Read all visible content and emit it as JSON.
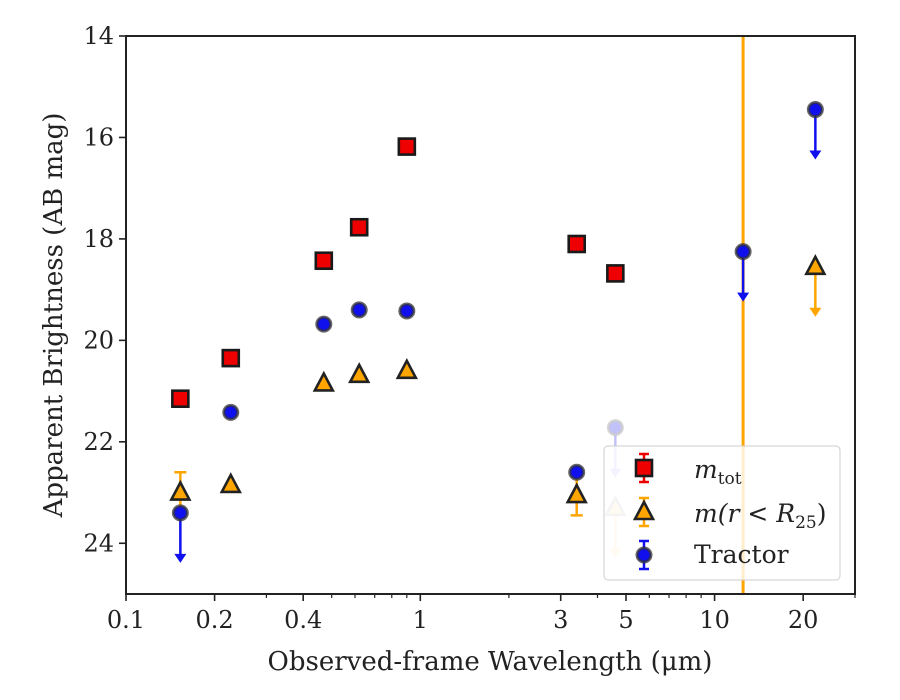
{
  "chart_data": {
    "type": "scatter",
    "title": "",
    "xlabel": "Observed-frame Wavelength (μm)",
    "ylabel": "Apparent Brightness (AB mag)",
    "xscale": "log",
    "yaxis_inverted": true,
    "xlim": [
      0.1,
      30
    ],
    "ylim": [
      25,
      14
    ],
    "xticks": [
      {
        "value": 0.1,
        "label": "0.1"
      },
      {
        "value": 0.2,
        "label": "0.2"
      },
      {
        "value": 0.4,
        "label": "0.4"
      },
      {
        "value": 1,
        "label": "1"
      },
      {
        "value": 3,
        "label": "3"
      },
      {
        "value": 5,
        "label": "5"
      },
      {
        "value": 10,
        "label": "10"
      },
      {
        "value": 20,
        "label": "20"
      }
    ],
    "yticks": [
      {
        "value": 14,
        "label": "14"
      },
      {
        "value": 16,
        "label": "16"
      },
      {
        "value": 18,
        "label": "18"
      },
      {
        "value": 20,
        "label": "20"
      },
      {
        "value": 22,
        "label": "22"
      },
      {
        "value": 24,
        "label": "24"
      }
    ],
    "grid": false,
    "legend_position": "lower-right",
    "vertical_line": {
      "x": 12.5,
      "color": "#ffa500"
    },
    "series": [
      {
        "name_main": "m",
        "name_sub": "tot",
        "marker": "square",
        "color": "#ee0000",
        "edge": "#1a1a1a",
        "points": [
          {
            "x": 0.153,
            "y": 21.15,
            "upper_limit": false
          },
          {
            "x": 0.227,
            "y": 20.35,
            "upper_limit": false
          },
          {
            "x": 0.47,
            "y": 18.43,
            "upper_limit": false
          },
          {
            "x": 0.62,
            "y": 17.77,
            "upper_limit": false
          },
          {
            "x": 0.9,
            "y": 16.18,
            "upper_limit": false
          },
          {
            "x": 3.4,
            "y": 18.1,
            "upper_limit": false
          },
          {
            "x": 4.6,
            "y": 18.68,
            "upper_limit": false
          }
        ]
      },
      {
        "name_main": "m(r < R",
        "name_sub": "25",
        "name_tail": ")",
        "marker": "triangle",
        "color": "#ffa500",
        "edge": "#222222",
        "points": [
          {
            "x": 0.153,
            "y": 23.0,
            "err": 0.4,
            "upper_limit": false
          },
          {
            "x": 0.227,
            "y": 22.85,
            "upper_limit": false
          },
          {
            "x": 0.47,
            "y": 20.85,
            "upper_limit": false
          },
          {
            "x": 0.62,
            "y": 20.68,
            "upper_limit": false
          },
          {
            "x": 0.9,
            "y": 20.6,
            "upper_limit": false
          },
          {
            "x": 3.4,
            "y": 23.05,
            "err": 0.4,
            "upper_limit": false
          },
          {
            "x": 4.6,
            "y": 23.3,
            "upper_limit": true,
            "faded": true
          },
          {
            "x": 22.0,
            "y": 18.55,
            "upper_limit": true
          }
        ]
      },
      {
        "name": "Tractor",
        "marker": "circle",
        "color": "#1010ee",
        "edge": "#333333",
        "points": [
          {
            "x": 0.153,
            "y": 23.4,
            "upper_limit": true
          },
          {
            "x": 0.227,
            "y": 21.42,
            "upper_limit": false
          },
          {
            "x": 0.47,
            "y": 19.68,
            "upper_limit": false
          },
          {
            "x": 0.62,
            "y": 19.4,
            "upper_limit": false
          },
          {
            "x": 0.9,
            "y": 19.42,
            "upper_limit": false
          },
          {
            "x": 3.4,
            "y": 22.6,
            "upper_limit": false
          },
          {
            "x": 4.6,
            "y": 21.72,
            "upper_limit": true,
            "faded": true
          },
          {
            "x": 12.5,
            "y": 18.25,
            "upper_limit": true
          },
          {
            "x": 22.0,
            "y": 15.45,
            "upper_limit": true
          }
        ]
      }
    ]
  }
}
